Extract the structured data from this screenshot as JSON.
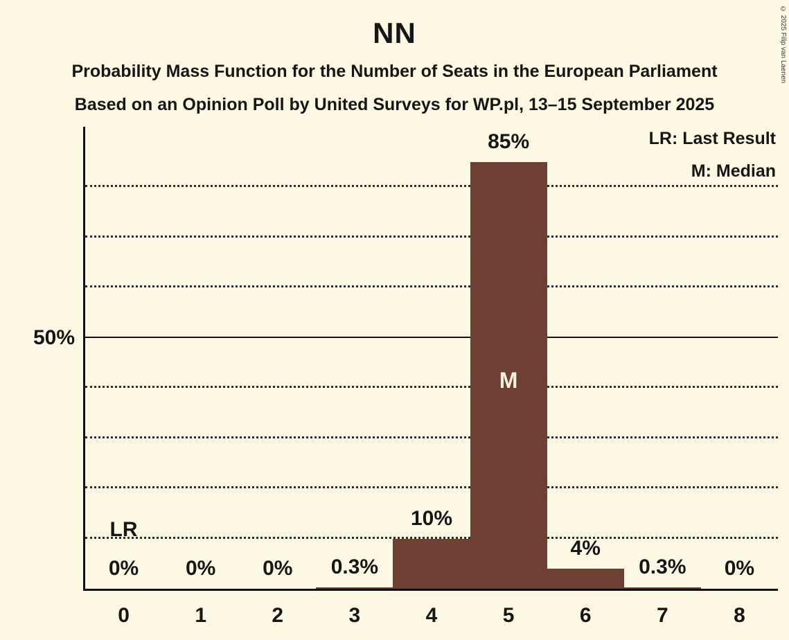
{
  "title": "NN",
  "subtitle1": "Probability Mass Function for the Number of Seats in the European Parliament",
  "subtitle2": "Based on an Opinion Poll by United Surveys for WP.pl, 13–15 September 2025",
  "copyright": "© 2025 Filip van Laenen",
  "legend": {
    "lr": "LR: Last Result",
    "m": "M: Median"
  },
  "colors": {
    "background": "#fcf8e3",
    "bar": "#6e4033",
    "text": "#161616"
  },
  "chart_data": {
    "type": "bar",
    "title": "NN",
    "categories": [
      "0",
      "1",
      "2",
      "3",
      "4",
      "5",
      "6",
      "7",
      "8"
    ],
    "values": [
      0,
      0,
      0,
      0.3,
      10,
      85,
      4,
      0.3,
      0
    ],
    "value_labels": [
      "0%",
      "0%",
      "0%",
      "0.3%",
      "10%",
      "85%",
      "4%",
      "0.3%",
      "0%"
    ],
    "xlabel": "",
    "ylabel": "",
    "ylim": [
      0,
      92
    ],
    "grid": true,
    "gridlines": {
      "dotted": [
        10,
        20,
        30,
        40,
        60,
        70,
        80
      ],
      "solid": [
        50
      ]
    },
    "yaxis_label": {
      "value": 50,
      "text": "50%"
    },
    "annotations": {
      "last_result_label": "LR",
      "last_result_category": "0",
      "median_label": "M",
      "median_category": "5"
    },
    "legend_position": "top-right"
  }
}
